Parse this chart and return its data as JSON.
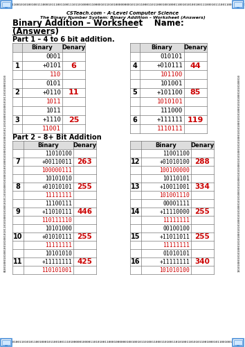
{
  "title_line1": "Binary Addition – Worksheet    Name:",
  "title_line2": "(Answers)",
  "subtitle1": "CSTeach.com - A-Level Computer Science",
  "subtitle2": "The Binary Number System: Binary Addition – Worksheet (Answers)",
  "part1_title": "Part 1 – 4 to 6 bit addition.",
  "part2_title": "Part 2 – 8+ Bit Addition",
  "header_binary": "Binary",
  "header_denary": "Denary",
  "part1_left": [
    {
      "num": "1",
      "row1": "0001",
      "row2": "+0101",
      "row3": "110",
      "denary": "6"
    },
    {
      "num": "2",
      "row1": "0101",
      "row2": "+0110",
      "row3": "1011",
      "denary": "11"
    },
    {
      "num": "3",
      "row1": "1011",
      "row2": "+1110",
      "row3": "11001",
      "denary": "25"
    }
  ],
  "part1_right": [
    {
      "num": "4",
      "row1": "010101",
      "row2": "+010111",
      "row3": "101100",
      "denary": "44"
    },
    {
      "num": "5",
      "row1": "101001",
      "row2": "+101100",
      "row3": "1010101",
      "denary": "85"
    },
    {
      "num": "6",
      "row1": "111000",
      "row2": "+111111",
      "row3": "1110111",
      "denary": "119"
    }
  ],
  "part2_left": [
    {
      "num": "7",
      "row1": "11010100",
      "row2": "+00110011",
      "row3": "100000111",
      "denary": "263"
    },
    {
      "num": "8",
      "row1": "10101010",
      "row2": "+01010101",
      "row3": "11111111",
      "denary": "255"
    },
    {
      "num": "9",
      "row1": "11100111",
      "row2": "+11010111",
      "row3": "110111110",
      "denary": "446"
    },
    {
      "num": "10",
      "row1": "10101000",
      "row2": "+01010111",
      "row3": "11111111",
      "denary": "255"
    },
    {
      "num": "11",
      "row1": "10101010",
      "row2": "+11111111",
      "row3": "110101001",
      "denary": "425"
    }
  ],
  "part2_right": [
    {
      "num": "12",
      "row1": "11001100",
      "row2": "+01010100",
      "row3": "100100000",
      "denary": "288"
    },
    {
      "num": "13",
      "row1": "10110101",
      "row2": "+10011001",
      "row3": "101001110",
      "denary": "334"
    },
    {
      "num": "14",
      "row1": "00001111",
      "row2": "+11110000",
      "row3": "11111111",
      "denary": "255"
    },
    {
      "num": "15",
      "row1": "00100100",
      "row2": "+11011011",
      "row3": "11111111",
      "denary": "255"
    },
    {
      "num": "16",
      "row1": "01010101",
      "row2": "+11111111",
      "row3": "101010100",
      "denary": "340"
    }
  ],
  "border_color": "#4a90d9",
  "red_color": "#cc0000",
  "strip_top": "01001000110010101001001110001011100110011101101000011000010110101000000001011011000110110001001000110010101001001110001011100110011101101",
  "strip_bottom": "110101001101010110010001011001001110100000100001101010011000100000010010010110100110001101001101010011010101100100010110010011101",
  "strip_left": "010010001010010010100101011010100010100101011010100010100101001000101001001010010101101010001010010101101010001010",
  "strip_right": "101010001010100010101000101010001010100010101000101010001010100010101000101010001010100010101000101010001010100010"
}
